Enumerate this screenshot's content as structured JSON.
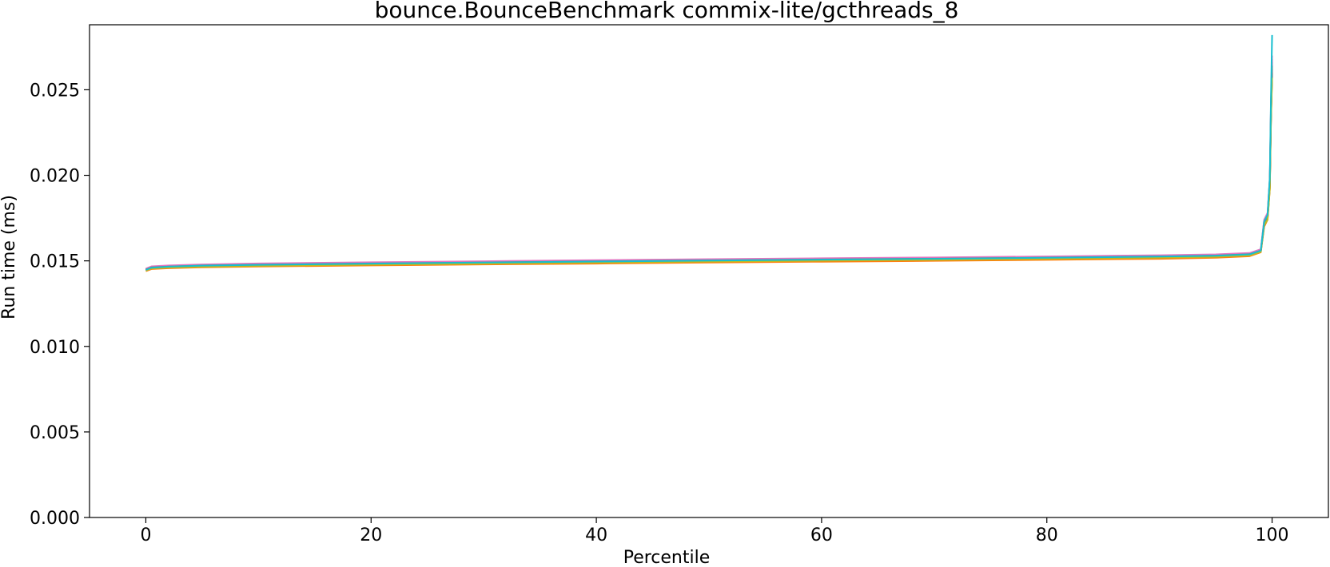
{
  "chart_data": {
    "type": "line",
    "title": "bounce.BounceBenchmark commix-lite/gcthreads_8",
    "xlabel": "Percentile",
    "ylabel": "Run time (ms)",
    "xlim": [
      -5,
      105
    ],
    "ylim": [
      0,
      0.0288
    ],
    "x_ticks": [
      0,
      20,
      40,
      60,
      80,
      100
    ],
    "x_tick_labels": [
      "0",
      "20",
      "40",
      "60",
      "80",
      "100"
    ],
    "y_ticks": [
      0.0,
      0.005,
      0.01,
      0.015,
      0.02,
      0.025
    ],
    "y_tick_labels": [
      "0.000",
      "0.005",
      "0.010",
      "0.015",
      "0.020",
      "0.025"
    ],
    "grid": false,
    "legend": "none",
    "x": [
      0,
      0.5,
      2,
      5,
      10,
      20,
      30,
      40,
      50,
      60,
      70,
      80,
      90,
      95,
      98,
      99,
      99.3,
      99.6,
      99.8,
      99.9,
      100
    ],
    "series": [
      {
        "color": "#1f77b4",
        "values": [
          0.01445,
          0.0146,
          0.01466,
          0.01472,
          0.01477,
          0.01484,
          0.0149,
          0.01496,
          0.01502,
          0.01507,
          0.01512,
          0.01518,
          0.01525,
          0.0153,
          0.01538,
          0.0156,
          0.0172,
          0.0176,
          0.0195,
          0.0235,
          0.0262
        ]
      },
      {
        "color": "#ff7f0e",
        "values": [
          0.0144,
          0.01452,
          0.01457,
          0.01462,
          0.01467,
          0.01473,
          0.01479,
          0.01484,
          0.0149,
          0.01495,
          0.015,
          0.01506,
          0.01512,
          0.01518,
          0.01527,
          0.0155,
          0.017,
          0.0174,
          0.0192,
          0.0232,
          0.0258
        ]
      },
      {
        "color": "#2ca02c",
        "values": [
          0.0145,
          0.01463,
          0.01468,
          0.01474,
          0.0148,
          0.01487,
          0.01493,
          0.01499,
          0.01505,
          0.0151,
          0.01515,
          0.01521,
          0.01528,
          0.01533,
          0.01541,
          0.01563,
          0.0173,
          0.0177,
          0.0197,
          0.0238,
          0.0266
        ]
      },
      {
        "color": "#d62728",
        "values": [
          0.01448,
          0.0146,
          0.01465,
          0.01471,
          0.01476,
          0.01483,
          0.01489,
          0.01495,
          0.01501,
          0.01506,
          0.01511,
          0.01517,
          0.01524,
          0.01529,
          0.01537,
          0.01558,
          0.0171,
          0.0175,
          0.0194,
          0.0234,
          0.026
        ]
      },
      {
        "color": "#9467bd",
        "values": [
          0.01452,
          0.01466,
          0.01471,
          0.01477,
          0.01482,
          0.01489,
          0.01495,
          0.01501,
          0.01507,
          0.01512,
          0.01517,
          0.01523,
          0.0153,
          0.01536,
          0.01544,
          0.01566,
          0.0174,
          0.0178,
          0.0198,
          0.024,
          0.0268
        ]
      },
      {
        "color": "#8c564b",
        "values": [
          0.01446,
          0.01458,
          0.01463,
          0.01469,
          0.01474,
          0.01481,
          0.01487,
          0.01493,
          0.01499,
          0.01504,
          0.01509,
          0.01515,
          0.01522,
          0.01527,
          0.01535,
          0.01556,
          0.0171,
          0.0175,
          0.0193,
          0.0233,
          0.0259
        ]
      },
      {
        "color": "#e377c2",
        "values": [
          0.01455,
          0.01468,
          0.01473,
          0.01479,
          0.01485,
          0.01492,
          0.01498,
          0.01504,
          0.0151,
          0.01515,
          0.0152,
          0.01526,
          0.01533,
          0.01538,
          0.01546,
          0.01568,
          0.0174,
          0.0178,
          0.0199,
          0.0242,
          0.027
        ]
      },
      {
        "color": "#7f7f7f",
        "values": [
          0.01449,
          0.01462,
          0.01467,
          0.01473,
          0.01478,
          0.01485,
          0.01491,
          0.01497,
          0.01503,
          0.01508,
          0.01513,
          0.01519,
          0.01526,
          0.01531,
          0.01539,
          0.0156,
          0.0172,
          0.0176,
          0.0196,
          0.0236,
          0.0264
        ]
      },
      {
        "color": "#bcbd22",
        "values": [
          0.01443,
          0.01456,
          0.01461,
          0.01466,
          0.01471,
          0.01478,
          0.01484,
          0.0149,
          0.01496,
          0.01501,
          0.01506,
          0.01512,
          0.01519,
          0.01524,
          0.01532,
          0.01553,
          0.0171,
          0.0174,
          0.0192,
          0.0231,
          0.0257
        ]
      },
      {
        "color": "#17becf",
        "values": [
          0.01447,
          0.0146,
          0.01466,
          0.01472,
          0.01477,
          0.01484,
          0.0149,
          0.01496,
          0.01502,
          0.01507,
          0.01512,
          0.01518,
          0.01525,
          0.0153,
          0.01538,
          0.0156,
          0.0173,
          0.0177,
          0.0199,
          0.0245,
          0.0282
        ]
      }
    ]
  }
}
